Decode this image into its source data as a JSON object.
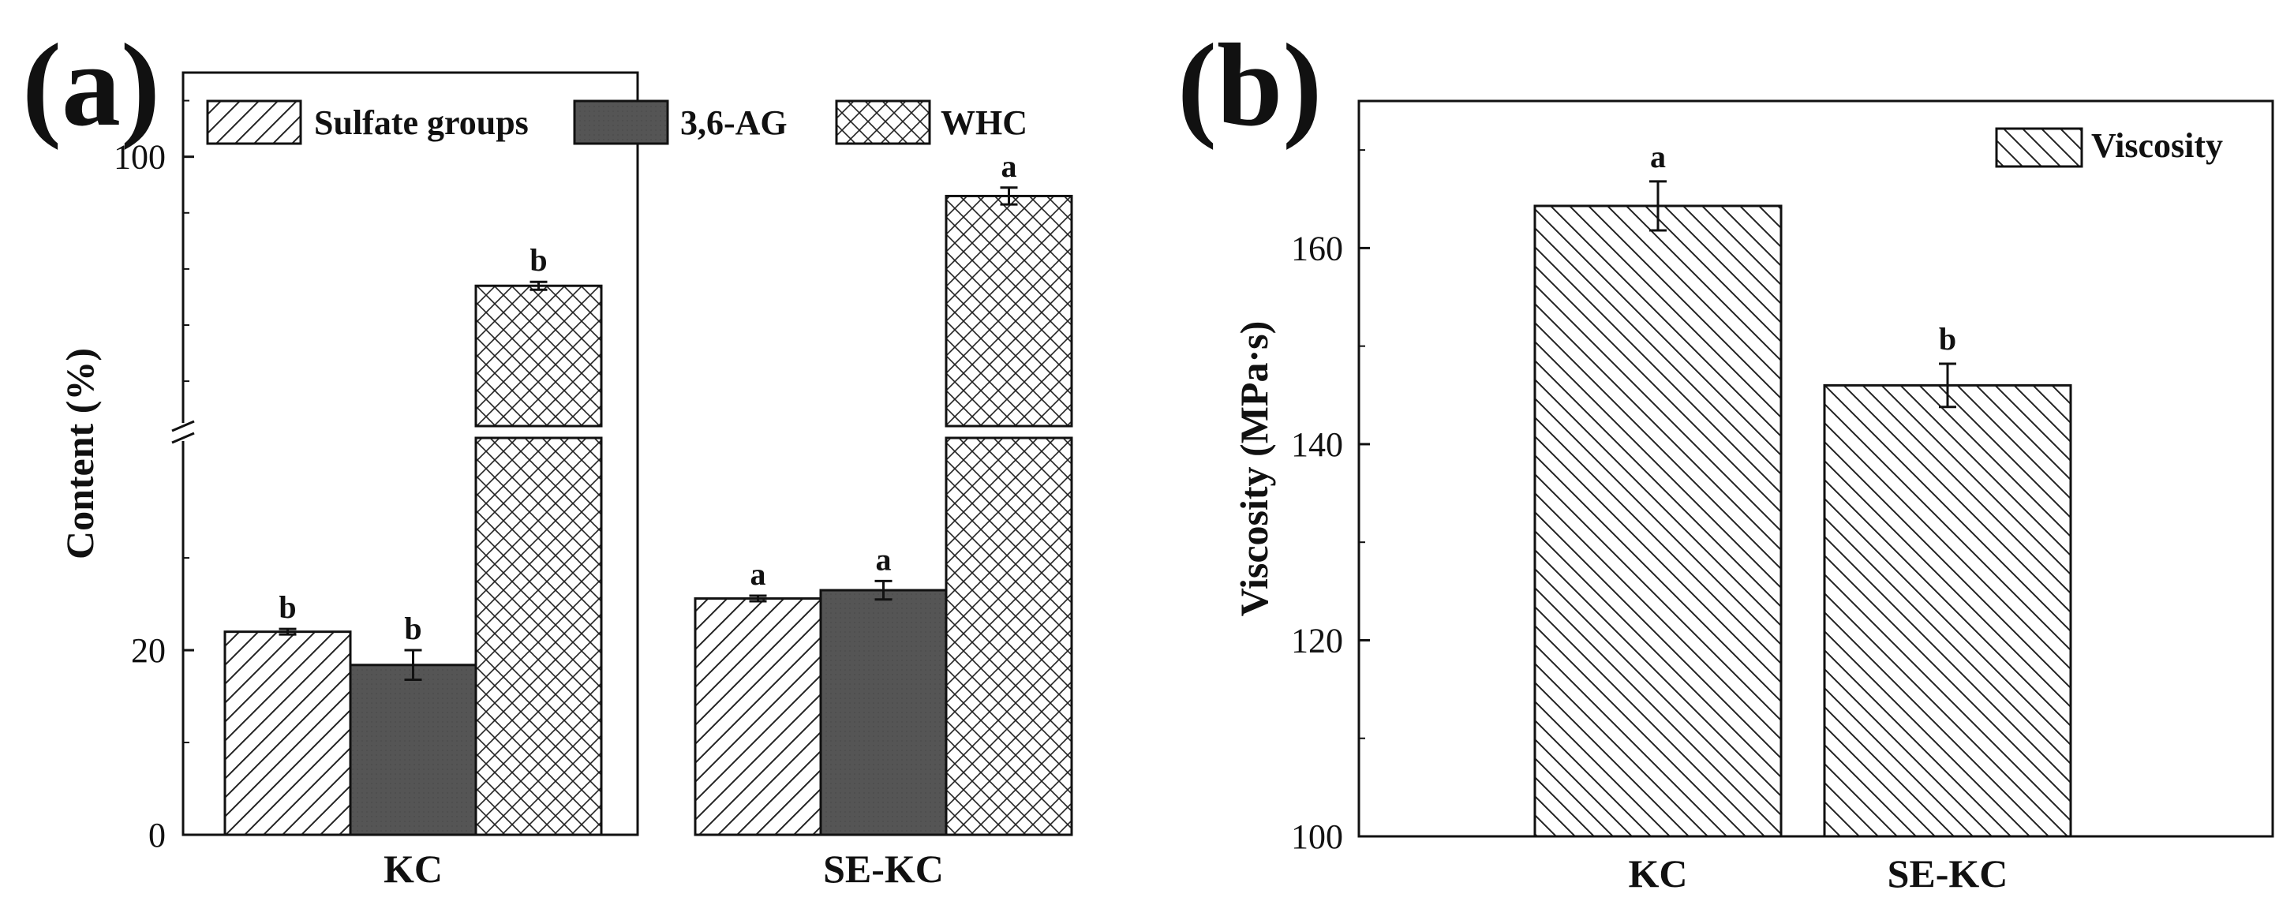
{
  "figure": {
    "panel_a_label": "(a)",
    "panel_b_label": "(b)"
  },
  "chart_data": [
    {
      "panel": "(a)",
      "type": "bar",
      "title": "",
      "xlabel": "",
      "ylabel": "Content (%)",
      "categories": [
        "KC",
        "SE-KC"
      ],
      "series": [
        {
          "name": "Sulfate groups",
          "pattern": "hatch-forward",
          "color": "#ffffff",
          "values": [
            22.0,
            25.6
          ],
          "errors": [
            0.3,
            0.3
          ],
          "labels": [
            "b",
            "a"
          ]
        },
        {
          "name": "3,6-AG",
          "pattern": "solid",
          "color": "#555555",
          "values": [
            18.4,
            26.5
          ],
          "errors": [
            1.6,
            1.0
          ],
          "labels": [
            "b",
            "a"
          ]
        },
        {
          "name": "WHC",
          "pattern": "crosshatch",
          "color": "#ffffff",
          "values": [
            77.0,
            93.0
          ],
          "errors": [
            0.7,
            1.5
          ],
          "labels": [
            "b",
            "a"
          ]
        }
      ],
      "axis_break": true,
      "ylim_lower": [
        0,
        43
      ],
      "ylim_upper": [
        52,
        115
      ],
      "yticks": [
        0,
        20,
        100
      ],
      "grid": false,
      "legend_position": "top"
    },
    {
      "panel": "(b)",
      "type": "bar",
      "title": "",
      "xlabel": "",
      "ylabel": "Viscosity (MPa·s)",
      "categories": [
        "KC",
        "SE-KC"
      ],
      "series": [
        {
          "name": "Viscosity",
          "pattern": "hatch-back",
          "color": "#ffffff",
          "values": [
            164.3,
            146.0
          ],
          "errors": [
            2.5,
            2.2
          ],
          "labels": [
            "a",
            "b"
          ]
        }
      ],
      "ylim": [
        100,
        175
      ],
      "yticks": [
        100,
        120,
        140,
        160
      ],
      "grid": false,
      "legend_position": "top-right"
    }
  ]
}
